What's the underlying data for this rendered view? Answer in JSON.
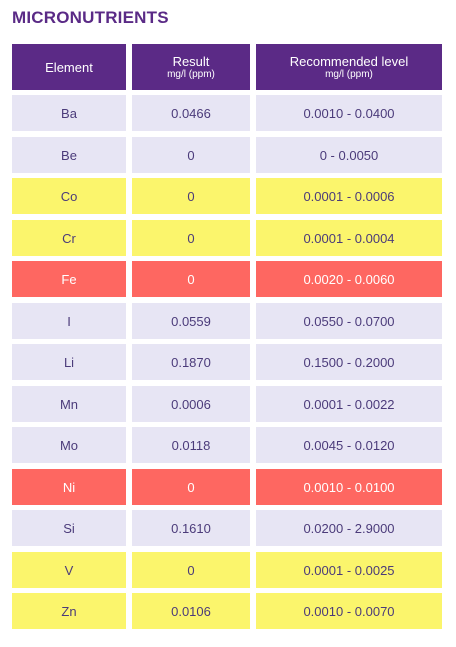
{
  "title": "MICRONUTRIENTS",
  "headers": {
    "element": "Element",
    "result": "Result",
    "result_unit": "mg/l (ppm)",
    "recommended": "Recommended level",
    "recommended_unit": "mg/l (ppm)"
  },
  "colors": {
    "header": "#5b2a86",
    "neutral": "#e7e5f4",
    "warning": "#fbf56c",
    "alert": "#fe6761"
  },
  "rows": [
    {
      "element": "Ba",
      "result": "0.0466",
      "range": "0.0010 - 0.0400",
      "status": "neutral"
    },
    {
      "element": "Be",
      "result": "0",
      "range": "0 - 0.0050",
      "status": "neutral"
    },
    {
      "element": "Co",
      "result": "0",
      "range": "0.0001 - 0.0006",
      "status": "warn"
    },
    {
      "element": "Cr",
      "result": "0",
      "range": "0.0001 - 0.0004",
      "status": "warn"
    },
    {
      "element": "Fe",
      "result": "0",
      "range": "0.0020 - 0.0060",
      "status": "alert"
    },
    {
      "element": "I",
      "result": "0.0559",
      "range": "0.0550 - 0.0700",
      "status": "neutral"
    },
    {
      "element": "Li",
      "result": "0.1870",
      "range": "0.1500 - 0.2000",
      "status": "neutral"
    },
    {
      "element": "Mn",
      "result": "0.0006",
      "range": "0.0001 - 0.0022",
      "status": "neutral"
    },
    {
      "element": "Mo",
      "result": "0.0118",
      "range": "0.0045 - 0.0120",
      "status": "neutral"
    },
    {
      "element": "Ni",
      "result": "0",
      "range": "0.0010 - 0.0100",
      "status": "alert"
    },
    {
      "element": "Si",
      "result": "0.1610",
      "range": "0.0200 - 2.9000",
      "status": "neutral"
    },
    {
      "element": "V",
      "result": "0",
      "range": "0.0001 - 0.0025",
      "status": "warn"
    },
    {
      "element": "Zn",
      "result": "0.0106",
      "range": "0.0010 - 0.0070",
      "status": "warn"
    }
  ]
}
